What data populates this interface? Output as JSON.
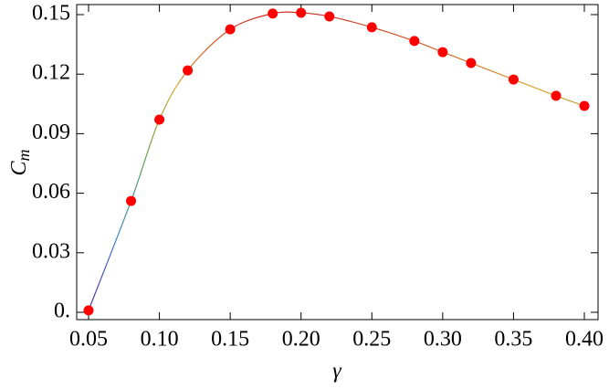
{
  "chart_data": {
    "type": "line-scatter",
    "x_label": "γ",
    "y_label": "C",
    "y_label_subscript": "m",
    "x": [
      0.05,
      0.08,
      0.1,
      0.12,
      0.15,
      0.18,
      0.2,
      0.22,
      0.25,
      0.28,
      0.3,
      0.32,
      0.35,
      0.38,
      0.4
    ],
    "series": [
      {
        "values": [
          0.001,
          0.0561,
          0.0971,
          0.1219,
          0.1426,
          0.1505,
          0.1509,
          0.1491,
          0.1436,
          0.1367,
          0.1311,
          0.1256,
          0.1173,
          0.1091,
          0.104
        ],
        "color": "#ff0000",
        "line_gradient": [
          "#5b2a9a",
          "#3b86d0",
          "#5ea04c",
          "#d9a22e",
          "#cc2a22"
        ]
      }
    ],
    "xlim": [
      0.05,
      0.4
    ],
    "xticks": [
      0.05,
      {
        "value": 0.1,
        "label": "0.10"
      },
      0.15,
      {
        "value": 0.2,
        "label": "0.20"
      },
      0.25,
      {
        "value": 0.3,
        "label": "0.30"
      },
      0.35,
      {
        "value": 0.4,
        "label": "0.40"
      }
    ],
    "ylim": [
      0,
      0.15
    ],
    "yticks": [
      {
        "value": 0,
        "label": "0."
      },
      0.03,
      0.06,
      0.09,
      {
        "value": 0.12,
        "label": "0.12"
      },
      0.15
    ]
  }
}
